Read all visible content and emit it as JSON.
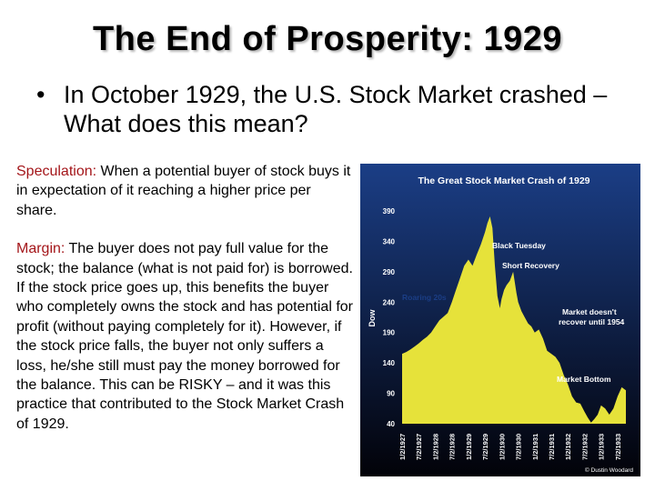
{
  "slide": {
    "title": "The End of Prosperity: 1929",
    "bullet_marker": "•",
    "bullet_text": "In October 1929, the U.S. Stock Market crashed – What does this mean?",
    "definitions": [
      {
        "term": "Speculation:",
        "text": " When a potential buyer of stock buys it in expectation of it reaching a higher price per share."
      },
      {
        "term": "Margin:",
        "text": " The buyer does not pay full value for the stock; the balance (what is not paid for) is borrowed.  If the stock price goes up, this benefits the buyer who completely owns the stock and has potential for profit (without paying completely for it).  However, if the stock price falls, the buyer not only suffers a loss, he/she still must pay the money borrowed for the balance.  This can be RISKY – and it was this practice that contributed to the Stock Market Crash of 1929."
      }
    ]
  },
  "colors": {
    "term": "#a4161a",
    "chart_bg_top": "#1b3e86",
    "chart_bg_bottom": "#020208",
    "chart_fill": "#e6e23a",
    "chart_text": "#ffffff"
  },
  "chart_data": {
    "type": "area",
    "title": "The Great Stock Market Crash of 1929",
    "ylabel": "Dow",
    "ylim": [
      40,
      390
    ],
    "yticks": [
      390,
      340,
      290,
      240,
      190,
      140,
      90,
      40
    ],
    "xticks": [
      "1/2/1927",
      "7/2/1927",
      "1/2/1928",
      "7/2/1928",
      "1/2/1929",
      "7/2/1929",
      "1/2/1930",
      "7/2/1930",
      "1/2/1931",
      "7/2/1931",
      "1/2/1932",
      "7/2/1932",
      "1/2/1933",
      "7/2/1933"
    ],
    "x": [
      0,
      0.25,
      0.5,
      0.75,
      1,
      1.25,
      1.5,
      1.75,
      2,
      2.25,
      2.5,
      2.75,
      3,
      3.25,
      3.5,
      3.75,
      4,
      4.25,
      4.5,
      4.75,
      5,
      5.15,
      5.3,
      5.45,
      5.6,
      5.75,
      5.9,
      6,
      6.15,
      6.3,
      6.5,
      6.7,
      6.9,
      7,
      7.2,
      7.4,
      7.6,
      7.8,
      8,
      8.25,
      8.5,
      8.75,
      9,
      9.25,
      9.5,
      9.75,
      10,
      10.25,
      10.5,
      10.75,
      11,
      11.2,
      11.4,
      11.6,
      11.8,
      12,
      12.25,
      12.5,
      12.75,
      13,
      13.25,
      13.5
    ],
    "values": [
      155,
      158,
      162,
      167,
      172,
      178,
      183,
      190,
      200,
      210,
      216,
      222,
      240,
      260,
      280,
      300,
      310,
      300,
      318,
      335,
      355,
      370,
      381,
      362,
      300,
      250,
      230,
      245,
      260,
      268,
      275,
      290,
      255,
      240,
      225,
      215,
      205,
      200,
      190,
      195,
      180,
      160,
      155,
      150,
      140,
      120,
      105,
      85,
      75,
      73,
      60,
      50,
      42,
      48,
      55,
      70,
      65,
      55,
      65,
      85,
      100,
      95
    ],
    "annotations": [
      "Black Tuesday",
      "Short Recovery",
      "Roaring 20s",
      "Market doesn't recover until 1954",
      "Market Bottom"
    ],
    "credit": "© Dustin Woodard"
  }
}
